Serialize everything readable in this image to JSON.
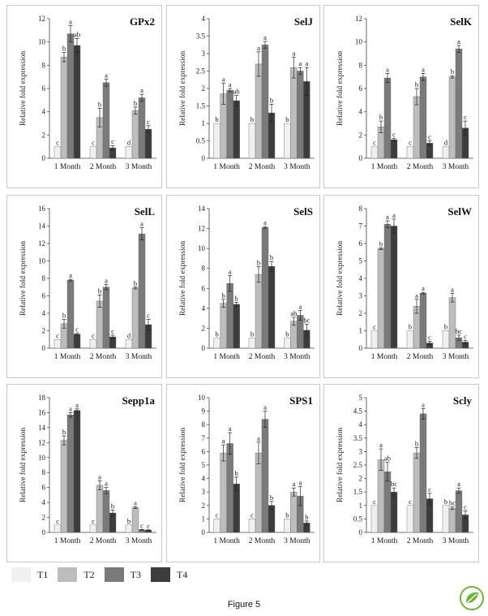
{
  "figure_caption": "Figure 5",
  "legend": [
    {
      "label": "T1",
      "color": "#f0f0f0"
    },
    {
      "label": "T2",
      "color": "#bdbdbd"
    },
    {
      "label": "T3",
      "color": "#7a7a7a"
    },
    {
      "label": "T4",
      "color": "#3c3c3c"
    }
  ],
  "colors": {
    "T1": "#f0f0f0",
    "T2": "#bdbdbd",
    "T3": "#7a7a7a",
    "T4": "#3c3c3c",
    "logo_green": "#6db33f"
  },
  "logo": {
    "icon": "leaf-logo-icon"
  },
  "chart_data": [
    {
      "type": "bar",
      "title": "GPx2",
      "ylabel": "Relative fold expression",
      "categories": [
        "1 Month",
        "2 Month",
        "3 Month"
      ],
      "ylim": [
        0,
        12
      ],
      "ticks": [
        0,
        2,
        4,
        6,
        8,
        10,
        12
      ],
      "series": [
        {
          "name": "T1",
          "values": [
            1,
            1,
            1
          ],
          "errors": [
            0,
            0,
            0
          ],
          "letters": [
            "c",
            "c",
            "d"
          ]
        },
        {
          "name": "T2",
          "values": [
            8.7,
            3.5,
            4.1
          ],
          "errors": [
            0.4,
            0.8,
            0.3
          ],
          "letters": [
            "b",
            "b",
            "b"
          ]
        },
        {
          "name": "T3",
          "values": [
            10.7,
            6.5,
            5.2
          ],
          "errors": [
            0.7,
            0.3,
            0.3
          ],
          "letters": [
            "a",
            "a",
            "a"
          ]
        },
        {
          "name": "T4",
          "values": [
            9.7,
            0.9,
            2.5
          ],
          "errors": [
            0.6,
            0.2,
            0.3
          ],
          "letters": [
            "ab",
            "c",
            "c"
          ]
        }
      ]
    },
    {
      "type": "bar",
      "title": "SelJ",
      "ylabel": "Relative fold expression",
      "categories": [
        "1 Month",
        "2 Month",
        "3 Month"
      ],
      "ylim": [
        0,
        4
      ],
      "ticks": [
        0,
        0.5,
        1,
        1.5,
        2,
        2.5,
        3,
        3.5,
        4
      ],
      "series": [
        {
          "name": "T1",
          "values": [
            1,
            1,
            1
          ],
          "errors": [
            0,
            0,
            0
          ],
          "letters": [
            "b",
            "b",
            "b"
          ]
        },
        {
          "name": "T2",
          "values": [
            1.85,
            2.7,
            2.6
          ],
          "errors": [
            0.3,
            0.35,
            0.3
          ],
          "letters": [
            "a",
            "a",
            "a"
          ]
        },
        {
          "name": "T3",
          "values": [
            1.95,
            3.25,
            2.5
          ],
          "errors": [
            0.05,
            0.1,
            0.1
          ],
          "letters": [
            "a",
            "a",
            "a"
          ]
        },
        {
          "name": "T4",
          "values": [
            1.65,
            1.3,
            2.2
          ],
          "errors": [
            0.15,
            0.25,
            0.4
          ],
          "letters": [
            "ab",
            "b",
            "a"
          ]
        }
      ]
    },
    {
      "type": "bar",
      "title": "SelK",
      "ylabel": "Relative fold expression",
      "categories": [
        "1 Month",
        "2 Month",
        "3 Month"
      ],
      "ylim": [
        0,
        12
      ],
      "ticks": [
        0,
        2,
        4,
        6,
        8,
        10,
        12
      ],
      "series": [
        {
          "name": "T1",
          "values": [
            1,
            1,
            1
          ],
          "errors": [
            0,
            0,
            0
          ],
          "letters": [
            "c",
            "c",
            "d"
          ]
        },
        {
          "name": "T2",
          "values": [
            2.7,
            5.3,
            7.0
          ],
          "errors": [
            0.5,
            0.7,
            0.1
          ],
          "letters": [
            "b",
            "b",
            "b"
          ]
        },
        {
          "name": "T3",
          "values": [
            6.9,
            7.0,
            9.4
          ],
          "errors": [
            0.4,
            0.3,
            0.3
          ],
          "letters": [
            "a",
            "a",
            "a"
          ]
        },
        {
          "name": "T4",
          "values": [
            1.6,
            1.3,
            2.6
          ],
          "errors": [
            0.1,
            0.2,
            0.6
          ],
          "letters": [
            "c",
            "c",
            "c"
          ]
        }
      ]
    },
    {
      "type": "bar",
      "title": "SelL",
      "ylabel": "Relative fold expression",
      "categories": [
        "1 Month",
        "2 Month",
        "3 Month"
      ],
      "ylim": [
        0,
        16
      ],
      "ticks": [
        0,
        2,
        4,
        6,
        8,
        10,
        12,
        14,
        16
      ],
      "series": [
        {
          "name": "T1",
          "values": [
            1,
            1,
            1
          ],
          "errors": [
            0,
            0,
            0
          ],
          "letters": [
            "c",
            "c",
            "d"
          ]
        },
        {
          "name": "T2",
          "values": [
            2.8,
            5.4,
            6.9
          ],
          "errors": [
            0.5,
            0.7,
            0.1
          ],
          "letters": [
            "b",
            "b",
            "b"
          ]
        },
        {
          "name": "T3",
          "values": [
            7.8,
            7.0,
            13.1
          ],
          "errors": [
            0.1,
            0.3,
            0.7
          ],
          "letters": [
            "a",
            "a",
            "a"
          ]
        },
        {
          "name": "T4",
          "values": [
            1.6,
            1.3,
            2.7
          ],
          "errors": [
            0.1,
            0.2,
            0.6
          ],
          "letters": [
            "c",
            "c",
            "c"
          ]
        }
      ]
    },
    {
      "type": "bar",
      "title": "SelS",
      "ylabel": "Relative fold expression",
      "categories": [
        "1 Month",
        "2 Month",
        "3 Month"
      ],
      "ylim": [
        0,
        14
      ],
      "ticks": [
        0,
        2,
        4,
        6,
        8,
        10,
        12,
        14
      ],
      "series": [
        {
          "name": "T1",
          "values": [
            1,
            1,
            1
          ],
          "errors": [
            0,
            0,
            0
          ],
          "letters": [
            "b",
            "b",
            "b"
          ]
        },
        {
          "name": "T2",
          "values": [
            4.5,
            7.4,
            2.7
          ],
          "errors": [
            0.4,
            0.8,
            0.4
          ],
          "letters": [
            "b",
            "b",
            "ab"
          ]
        },
        {
          "name": "T3",
          "values": [
            6.5,
            12.1,
            3.3
          ],
          "errors": [
            0.8,
            0.1,
            0.5
          ],
          "letters": [
            "a",
            "a",
            "a"
          ]
        },
        {
          "name": "T4",
          "values": [
            4.4,
            8.2,
            1.8
          ],
          "errors": [
            0.2,
            0.5,
            0.6
          ],
          "letters": [
            "b",
            "b",
            "bc"
          ]
        }
      ]
    },
    {
      "type": "bar",
      "title": "SelW",
      "ylabel": "Relative fold expression",
      "categories": [
        "1 Month",
        "2 Month",
        "3 Month"
      ],
      "ylim": [
        0,
        8
      ],
      "ticks": [
        0,
        1,
        2,
        3,
        4,
        5,
        6,
        7,
        8
      ],
      "series": [
        {
          "name": "T1",
          "values": [
            1,
            1,
            1
          ],
          "errors": [
            0,
            0,
            0
          ],
          "letters": [
            "c",
            "b",
            "b"
          ]
        },
        {
          "name": "T2",
          "values": [
            5.7,
            2.4,
            2.9
          ],
          "errors": [
            0.05,
            0.4,
            0.25
          ],
          "letters": [
            "b",
            "a",
            "a"
          ]
        },
        {
          "name": "T3",
          "values": [
            7.1,
            3.15,
            0.6
          ],
          "errors": [
            0.2,
            0.05,
            0.15
          ],
          "letters": [
            "a",
            "a",
            "bc"
          ]
        },
        {
          "name": "T4",
          "values": [
            7.0,
            0.3,
            0.35
          ],
          "errors": [
            0.4,
            0.1,
            0.1
          ],
          "letters": [
            "a",
            "c",
            "c"
          ]
        }
      ]
    },
    {
      "type": "bar",
      "title": "Sepp1a",
      "ylabel": "Relative fold expression",
      "categories": [
        "1 Month",
        "2 Month",
        "3 Month"
      ],
      "ylim": [
        0,
        18
      ],
      "ticks": [
        0,
        2,
        4,
        6,
        8,
        10,
        12,
        14,
        16,
        18
      ],
      "series": [
        {
          "name": "T1",
          "values": [
            1,
            1,
            1
          ],
          "errors": [
            0,
            0,
            0
          ],
          "letters": [
            "c",
            "c",
            "b"
          ]
        },
        {
          "name": "T2",
          "values": [
            12.3,
            6.3,
            3.3
          ],
          "errors": [
            0.6,
            0.6,
            0.1
          ],
          "letters": [
            "b",
            "a",
            "a"
          ]
        },
        {
          "name": "T3",
          "values": [
            15.7,
            5.6,
            0.35
          ],
          "errors": [
            0.3,
            0.4,
            0.05
          ],
          "letters": [
            "a",
            "a",
            "c"
          ]
        },
        {
          "name": "T4",
          "values": [
            16.3,
            2.6,
            0.3
          ],
          "errors": [
            0.2,
            0.4,
            0.05
          ],
          "letters": [
            "a",
            "b",
            "c"
          ]
        }
      ]
    },
    {
      "type": "bar",
      "title": "SPS1",
      "ylabel": "Relative fold expression",
      "categories": [
        "1 Month",
        "2 Month",
        "3 Month"
      ],
      "ylim": [
        0,
        10
      ],
      "ticks": [
        0,
        1,
        2,
        3,
        4,
        5,
        6,
        7,
        8,
        9,
        10
      ],
      "series": [
        {
          "name": "T1",
          "values": [
            1,
            1,
            1
          ],
          "errors": [
            0,
            0,
            0
          ],
          "letters": [
            "c",
            "c",
            "b"
          ]
        },
        {
          "name": "T2",
          "values": [
            5.9,
            5.9,
            3.0
          ],
          "errors": [
            0.6,
            0.8,
            0.3
          ],
          "letters": [
            "a",
            "a",
            "a"
          ]
        },
        {
          "name": "T3",
          "values": [
            6.6,
            8.4,
            2.7
          ],
          "errors": [
            0.8,
            0.6,
            0.7
          ],
          "letters": [
            "a",
            "a",
            "a"
          ]
        },
        {
          "name": "T4",
          "values": [
            3.6,
            2.0,
            0.7
          ],
          "errors": [
            0.5,
            0.3,
            0.15
          ],
          "letters": [
            "b",
            "b",
            "b"
          ]
        }
      ]
    },
    {
      "type": "bar",
      "title": "Scly",
      "ylabel": "Relative fold expression",
      "categories": [
        "1 Month",
        "2 Month",
        "3 Month"
      ],
      "ylim": [
        0,
        5
      ],
      "ticks": [
        0,
        0.5,
        1,
        1.5,
        2,
        2.5,
        3,
        3.5,
        4,
        4.5,
        5
      ],
      "series": [
        {
          "name": "T1",
          "values": [
            1,
            1,
            1
          ],
          "errors": [
            0,
            0,
            0
          ],
          "letters": [
            "c",
            "c",
            "b"
          ]
        },
        {
          "name": "T2",
          "values": [
            2.7,
            2.95,
            0.9
          ],
          "errors": [
            0.4,
            0.2,
            0.05
          ],
          "letters": [
            "a",
            "b",
            "bc"
          ]
        },
        {
          "name": "T3",
          "values": [
            2.25,
            4.4,
            1.55
          ],
          "errors": [
            0.35,
            0.2,
            0.1
          ],
          "letters": [
            "ab",
            "a",
            "a"
          ]
        },
        {
          "name": "T4",
          "values": [
            1.5,
            1.25,
            0.65
          ],
          "errors": [
            0.15,
            0.2,
            0.15
          ],
          "letters": [
            "bc",
            "c",
            "c"
          ]
        }
      ]
    }
  ]
}
